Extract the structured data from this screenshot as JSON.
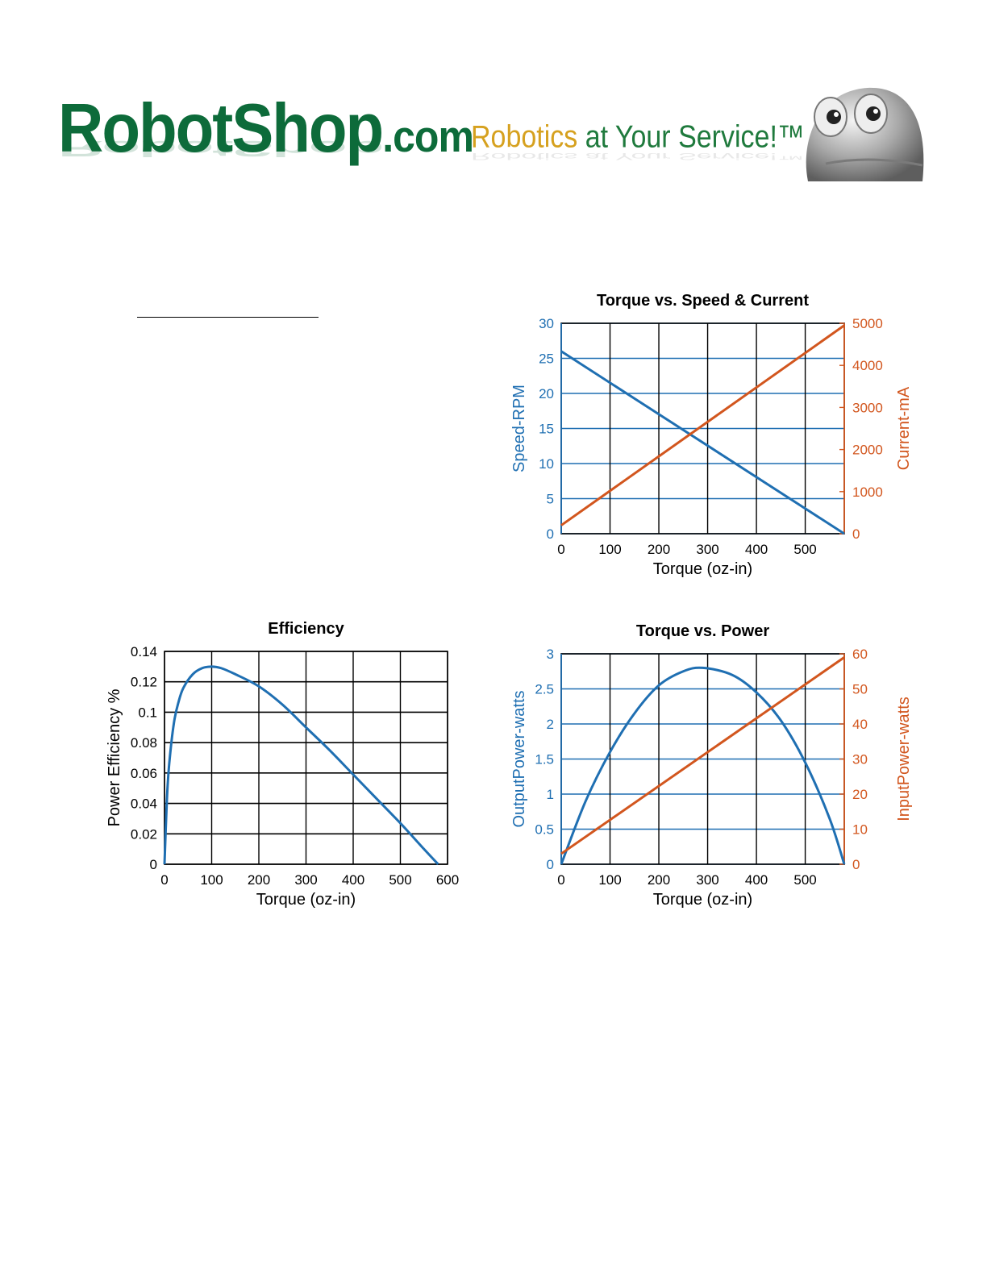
{
  "header": {
    "brand_main": "RobotShop",
    "brand_suffix": ".com",
    "slogan_part1": "Robotics",
    "slogan_part2": "at Your Service!™"
  },
  "colors": {
    "blue": "#1f6fb2",
    "orange": "#d2561e",
    "brand_green": "#0d6b3a",
    "slogan_gold": "#d6a11f"
  },
  "chart_data": [
    {
      "id": "speed-current",
      "type": "line",
      "title": "Torque vs. Speed & Current",
      "xlabel": "Torque (oz-in)",
      "ylabel": "Speed-RPM",
      "y2label": "Current-mA",
      "xlim": [
        0,
        580
      ],
      "ylim": [
        0,
        30
      ],
      "y2lim": [
        0,
        5000
      ],
      "xticks": [
        0,
        100,
        200,
        300,
        400,
        500
      ],
      "yticks": [
        0,
        5,
        10,
        15,
        20,
        25,
        30
      ],
      "y2ticks": [
        0,
        1000,
        2000,
        3000,
        4000,
        5000
      ],
      "grid": true,
      "series": [
        {
          "axis": "left",
          "color": "#1f6fb2",
          "x": [
            0,
            580
          ],
          "y": [
            26,
            0
          ]
        },
        {
          "axis": "right",
          "color": "#d2561e",
          "x": [
            0,
            580
          ],
          "y": [
            200,
            4950
          ]
        }
      ]
    },
    {
      "id": "efficiency",
      "type": "line",
      "title": "Efficiency",
      "xlabel": "Torque (oz-in)",
      "ylabel": "Power Efficiency %",
      "xlim": [
        0,
        600
      ],
      "ylim": [
        0,
        0.14
      ],
      "xticks": [
        0,
        100,
        200,
        300,
        400,
        500,
        600
      ],
      "yticks": [
        0,
        0.02,
        0.04,
        0.06,
        0.08,
        0.1,
        0.12,
        0.14
      ],
      "grid": true,
      "series": [
        {
          "axis": "left",
          "color": "#1f6fb2",
          "x": [
            0,
            5,
            10,
            20,
            30,
            40,
            60,
            80,
            100,
            120,
            150,
            200,
            250,
            300,
            350,
            400,
            450,
            500,
            550,
            580
          ],
          "y": [
            0,
            0.042,
            0.066,
            0.093,
            0.107,
            0.116,
            0.125,
            0.129,
            0.13,
            0.129,
            0.125,
            0.117,
            0.105,
            0.09,
            0.075,
            0.059,
            0.043,
            0.027,
            0.01,
            0
          ]
        }
      ]
    },
    {
      "id": "power",
      "type": "line",
      "title": "Torque vs. Power",
      "xlabel": "Torque (oz-in)",
      "ylabel": "OutputPower-watts",
      "y2label": "InputPower-watts",
      "xlim": [
        0,
        580
      ],
      "ylim": [
        0,
        3
      ],
      "y2lim": [
        0,
        60
      ],
      "xticks": [
        0,
        100,
        200,
        300,
        400,
        500
      ],
      "yticks": [
        0,
        0.5,
        1,
        1.5,
        2,
        2.5,
        3
      ],
      "y2ticks": [
        0,
        10,
        20,
        30,
        40,
        50,
        60
      ],
      "grid": true,
      "series": [
        {
          "axis": "left",
          "color": "#1f6fb2",
          "x": [
            0,
            50,
            100,
            150,
            200,
            250,
            290,
            350,
            400,
            450,
            500,
            550,
            580
          ],
          "y": [
            0,
            0.9,
            1.6,
            2.15,
            2.55,
            2.75,
            2.8,
            2.7,
            2.45,
            2.05,
            1.45,
            0.65,
            0
          ]
        },
        {
          "axis": "right",
          "color": "#d2561e",
          "x": [
            0,
            580
          ],
          "y": [
            3,
            59
          ]
        }
      ]
    }
  ]
}
